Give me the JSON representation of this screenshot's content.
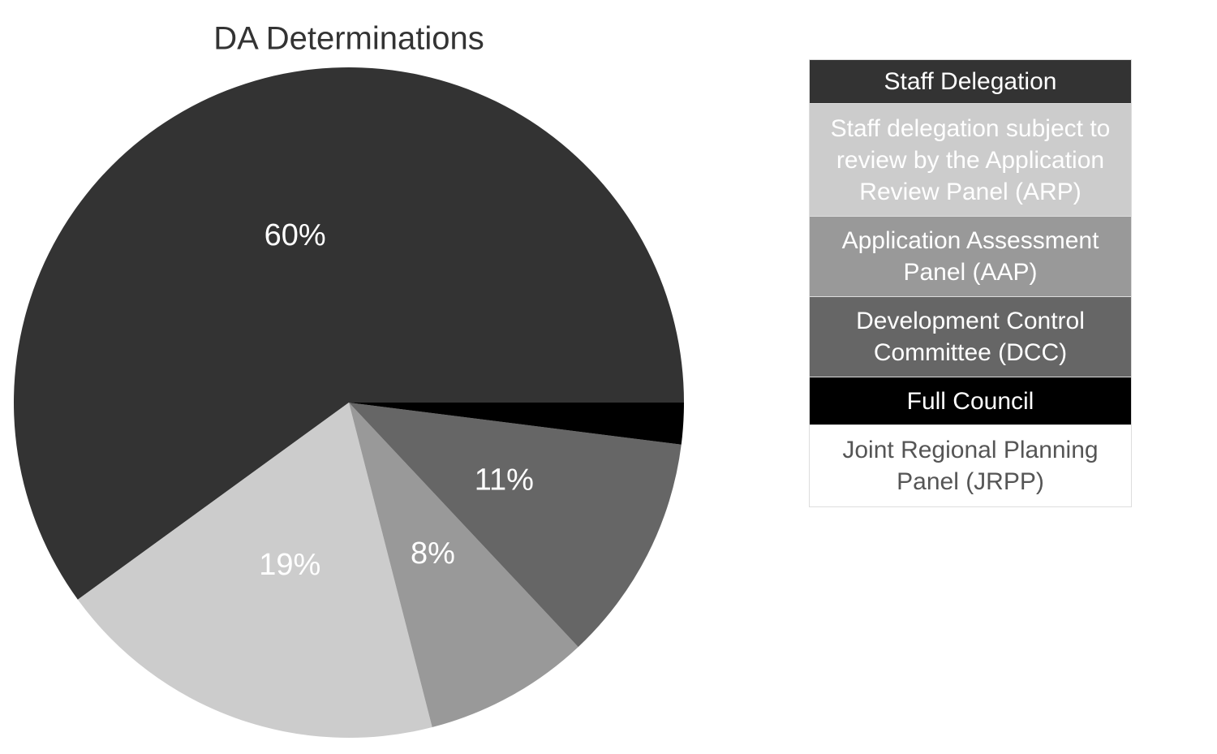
{
  "chart_data": {
    "type": "pie",
    "title": "DA Determinations",
    "categories": [
      "Staff Delegation",
      "Staff delegation subject to review by the Application Review Panel (ARP)",
      "Application Assessment Panel (AAP)",
      "Development Control Committee (DCC)",
      "Full Council",
      "Joint Regional Planning Panel (JRPP)"
    ],
    "values": [
      60,
      19,
      8,
      11,
      2,
      0
    ],
    "value_labels": [
      "60%",
      "19%",
      "8%",
      "11%",
      null,
      null
    ],
    "colors": [
      "#333333",
      "#cccccc",
      "#999999",
      "#666666",
      "#000000",
      "#ffffff"
    ],
    "legend": "right"
  }
}
